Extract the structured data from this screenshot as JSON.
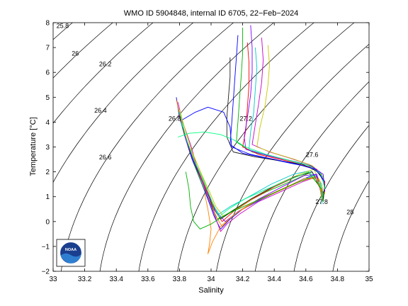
{
  "chart_data": {
    "type": "line",
    "title": "WMO ID 5904848, internal ID 6705, 22−Feb−2024",
    "xlabel": "Salinity",
    "ylabel": "Temperature [°C]",
    "xlim": [
      33,
      35
    ],
    "ylim": [
      -2,
      8
    ],
    "xticks": [
      33,
      33.2,
      33.4,
      33.6,
      33.8,
      34,
      34.2,
      34.4,
      34.6,
      34.8,
      35
    ],
    "yticks": [
      -2,
      -1,
      0,
      1,
      2,
      3,
      4,
      5,
      6,
      7,
      8
    ],
    "xtick_labels": [
      "33",
      "33.2",
      "33.4",
      "33.6",
      "33.8",
      "34",
      "34.2",
      "34.4",
      "34.6",
      "34.8",
      "35"
    ],
    "ytick_labels": [
      "−2",
      "−1",
      "0",
      "1",
      "2",
      "3",
      "4",
      "5",
      "6",
      "7",
      "8"
    ],
    "density_isolines": [
      25.6,
      25.8,
      26,
      26.2,
      26.4,
      26.6,
      26.8,
      27,
      27.2,
      27.4,
      27.6,
      27.8,
      28
    ],
    "isoline_labels": [
      {
        "text": "25.8",
        "s": 33.06,
        "t": 7.78
      },
      {
        "text": "26",
        "s": 33.14,
        "t": 6.68
      },
      {
        "text": "26.2",
        "s": 33.33,
        "t": 6.25
      },
      {
        "text": "26.4",
        "s": 33.3,
        "t": 4.38
      },
      {
        "text": "26.6",
        "s": 33.33,
        "t": 2.5
      },
      {
        "text": "26.8",
        "s": 33.77,
        "t": 4.05
      },
      {
        "text": "27.2",
        "s": 34.22,
        "t": 4.05
      },
      {
        "text": "27.6",
        "s": 34.64,
        "t": 2.6
      },
      {
        "text": "27.8",
        "s": 34.7,
        "t": 0.7
      },
      {
        "text": "28",
        "s": 34.88,
        "t": 0.3
      }
    ],
    "profile_colors": [
      "#0000ff",
      "#00b000",
      "#ff0000",
      "#00c8c8",
      "#c800c8",
      "#c8c800",
      "#202020",
      "#8000ff",
      "#ff8000",
      "#00ff80"
    ],
    "profiles": [
      [
        [
          33.78,
          5.0
        ],
        [
          33.8,
          4.2
        ],
        [
          33.84,
          3.3
        ],
        [
          33.88,
          2.5
        ],
        [
          33.93,
          1.7
        ],
        [
          33.98,
          0.9
        ],
        [
          34.02,
          0.2
        ],
        [
          34.06,
          -0.3
        ],
        [
          34.12,
          0.1
        ],
        [
          34.2,
          0.5
        ],
        [
          34.32,
          0.9
        ],
        [
          34.45,
          1.3
        ],
        [
          34.58,
          1.7
        ],
        [
          34.66,
          1.9
        ],
        [
          34.7,
          1.5
        ],
        [
          34.71,
          1.0
        ]
      ],
      [
        [
          33.79,
          4.6
        ],
        [
          33.82,
          3.8
        ],
        [
          33.86,
          3.0
        ],
        [
          33.9,
          2.2
        ],
        [
          33.95,
          1.4
        ],
        [
          34.0,
          0.7
        ],
        [
          34.04,
          0.1
        ],
        [
          34.1,
          0.3
        ],
        [
          34.2,
          0.7
        ],
        [
          34.35,
          1.2
        ],
        [
          34.5,
          1.6
        ],
        [
          34.62,
          1.95
        ],
        [
          34.69,
          1.4
        ],
        [
          34.7,
          0.9
        ]
      ],
      [
        [
          33.8,
          4.3
        ],
        [
          33.83,
          3.5
        ],
        [
          33.88,
          2.6
        ],
        [
          33.93,
          1.8
        ],
        [
          33.98,
          1.1
        ],
        [
          34.02,
          0.5
        ],
        [
          34.07,
          0.0
        ],
        [
          34.14,
          0.4
        ],
        [
          34.26,
          0.9
        ],
        [
          34.4,
          1.4
        ],
        [
          34.54,
          1.8
        ],
        [
          34.64,
          2.0
        ],
        [
          34.7,
          1.3
        ]
      ],
      [
        [
          33.81,
          4.0
        ],
        [
          33.85,
          3.1
        ],
        [
          33.9,
          2.3
        ],
        [
          33.96,
          1.5
        ],
        [
          34.0,
          0.8
        ],
        [
          34.05,
          0.3
        ],
        [
          34.12,
          0.6
        ],
        [
          34.24,
          1.0
        ],
        [
          34.38,
          1.5
        ],
        [
          34.52,
          1.9
        ],
        [
          34.63,
          2.05
        ],
        [
          34.69,
          1.6
        ],
        [
          34.71,
          0.8
        ]
      ],
      [
        [
          33.79,
          4.8
        ],
        [
          33.82,
          4.0
        ],
        [
          33.87,
          3.1
        ],
        [
          33.92,
          2.0
        ],
        [
          33.98,
          1.0
        ],
        [
          34.02,
          0.3
        ],
        [
          34.06,
          -0.4
        ],
        [
          34.1,
          -0.1
        ],
        [
          34.18,
          0.3
        ],
        [
          34.3,
          0.8
        ],
        [
          34.44,
          1.2
        ],
        [
          34.58,
          1.6
        ],
        [
          34.67,
          1.8
        ],
        [
          34.7,
          1.1
        ]
      ],
      [
        [
          33.8,
          4.5
        ],
        [
          33.84,
          3.6
        ],
        [
          33.88,
          2.8
        ],
        [
          33.94,
          1.9
        ],
        [
          33.99,
          1.2
        ],
        [
          34.03,
          0.6
        ],
        [
          34.08,
          0.2
        ],
        [
          34.16,
          0.5
        ],
        [
          34.28,
          1.0
        ],
        [
          34.42,
          1.5
        ],
        [
          34.56,
          1.9
        ],
        [
          34.65,
          2.1
        ],
        [
          34.7,
          1.5
        ],
        [
          34.71,
          0.9
        ]
      ],
      [
        [
          33.82,
          3.8
        ],
        [
          33.86,
          2.9
        ],
        [
          33.91,
          2.1
        ],
        [
          33.97,
          1.3
        ],
        [
          34.01,
          0.6
        ],
        [
          34.06,
          0.1
        ],
        [
          34.13,
          0.4
        ],
        [
          34.25,
          0.9
        ],
        [
          34.39,
          1.4
        ],
        [
          34.53,
          1.8
        ],
        [
          34.64,
          2.0
        ],
        [
          34.7,
          1.2
        ]
      ],
      [
        [
          33.83,
          3.5
        ],
        [
          33.88,
          2.6
        ],
        [
          33.94,
          1.7
        ],
        [
          33.99,
          1.0
        ],
        [
          34.03,
          0.4
        ],
        [
          34.09,
          0.0
        ],
        [
          34.17,
          0.4
        ],
        [
          34.3,
          0.9
        ],
        [
          34.45,
          1.4
        ],
        [
          34.59,
          1.85
        ],
        [
          34.67,
          1.9
        ],
        [
          34.7,
          1.0
        ]
      ],
      [
        [
          33.78,
          4.9
        ],
        [
          33.81,
          4.1
        ],
        [
          33.85,
          3.2
        ],
        [
          33.9,
          2.4
        ],
        [
          33.95,
          1.6
        ],
        [
          34.0,
          0.9
        ],
        [
          34.03,
          0.2
        ],
        [
          34.07,
          -0.2
        ],
        [
          34.13,
          0.2
        ],
        [
          34.22,
          0.6
        ],
        [
          34.34,
          1.0
        ],
        [
          34.48,
          1.4
        ],
        [
          34.6,
          1.75
        ],
        [
          34.68,
          1.7
        ],
        [
          34.7,
          1.0
        ]
      ],
      [
        [
          33.8,
          4.4
        ],
        [
          33.84,
          3.4
        ],
        [
          33.89,
          2.5
        ],
        [
          33.95,
          1.7
        ],
        [
          34.0,
          0.9
        ],
        [
          34.05,
          0.2
        ],
        [
          34.11,
          0.5
        ],
        [
          34.21,
          0.9
        ],
        [
          34.35,
          1.3
        ],
        [
          34.5,
          1.7
        ],
        [
          34.62,
          2.0
        ],
        [
          34.69,
          1.5
        ],
        [
          34.71,
          0.8
        ]
      ],
      [
        [
          34.17,
          7.5
        ],
        [
          34.16,
          6.6
        ],
        [
          34.15,
          5.7
        ],
        [
          34.14,
          4.8
        ],
        [
          34.13,
          3.9
        ],
        [
          34.12,
          3.1
        ],
        [
          34.2,
          2.75
        ],
        [
          34.35,
          2.55
        ],
        [
          34.5,
          2.35
        ],
        [
          34.62,
          2.2
        ],
        [
          34.7,
          1.9
        ],
        [
          34.72,
          1.4
        ],
        [
          34.71,
          0.9
        ]
      ],
      [
        [
          34.2,
          7.8
        ],
        [
          34.2,
          6.8
        ],
        [
          34.19,
          5.8
        ],
        [
          34.18,
          4.9
        ],
        [
          34.17,
          4.0
        ],
        [
          34.16,
          3.2
        ],
        [
          34.26,
          2.8
        ],
        [
          34.4,
          2.6
        ],
        [
          34.54,
          2.4
        ],
        [
          34.65,
          2.2
        ],
        [
          34.71,
          1.8
        ],
        [
          34.72,
          1.2
        ]
      ],
      [
        [
          34.23,
          7.2
        ],
        [
          34.24,
          6.4
        ],
        [
          34.24,
          5.5
        ],
        [
          34.23,
          4.6
        ],
        [
          34.22,
          3.7
        ],
        [
          34.2,
          3.0
        ],
        [
          34.3,
          2.7
        ],
        [
          34.44,
          2.5
        ],
        [
          34.57,
          2.3
        ],
        [
          34.67,
          2.1
        ],
        [
          34.72,
          1.6
        ],
        [
          34.71,
          0.8
        ]
      ],
      [
        [
          34.28,
          7.0
        ],
        [
          34.29,
          6.2
        ],
        [
          34.28,
          5.3
        ],
        [
          34.27,
          4.4
        ],
        [
          34.25,
          3.6
        ],
        [
          34.24,
          2.9
        ],
        [
          34.34,
          2.7
        ],
        [
          34.47,
          2.5
        ],
        [
          34.6,
          2.3
        ],
        [
          34.69,
          2.0
        ],
        [
          34.72,
          1.4
        ],
        [
          34.7,
          0.7
        ]
      ],
      [
        [
          34.32,
          7.4
        ],
        [
          34.33,
          6.5
        ],
        [
          34.32,
          5.6
        ],
        [
          34.3,
          4.7
        ],
        [
          34.28,
          3.9
        ],
        [
          34.26,
          3.1
        ],
        [
          34.37,
          2.8
        ],
        [
          34.5,
          2.55
        ],
        [
          34.62,
          2.3
        ],
        [
          34.7,
          1.9
        ],
        [
          34.72,
          1.3
        ]
      ],
      [
        [
          34.36,
          7.1
        ],
        [
          34.37,
          6.3
        ],
        [
          34.36,
          5.5
        ],
        [
          34.34,
          4.6
        ],
        [
          34.31,
          3.8
        ],
        [
          34.29,
          3.0
        ],
        [
          34.4,
          2.75
        ],
        [
          34.53,
          2.5
        ],
        [
          34.64,
          2.25
        ],
        [
          34.71,
          1.8
        ],
        [
          34.72,
          1.1
        ]
      ],
      [
        [
          34.12,
          6.6
        ],
        [
          34.12,
          5.8
        ],
        [
          34.11,
          5.0
        ],
        [
          34.1,
          4.2
        ],
        [
          34.1,
          3.4
        ],
        [
          34.14,
          2.8
        ],
        [
          34.28,
          2.6
        ],
        [
          34.43,
          2.45
        ],
        [
          34.58,
          2.3
        ],
        [
          34.68,
          2.0
        ],
        [
          34.72,
          1.5
        ],
        [
          34.71,
          0.9
        ]
      ],
      [
        [
          34.25,
          7.9
        ],
        [
          34.26,
          7.0
        ],
        [
          34.26,
          6.0
        ],
        [
          34.25,
          5.1
        ],
        [
          34.23,
          4.2
        ],
        [
          34.21,
          3.4
        ],
        [
          34.22,
          2.9
        ],
        [
          34.36,
          2.65
        ],
        [
          34.5,
          2.45
        ],
        [
          34.63,
          2.25
        ],
        [
          34.71,
          1.9
        ],
        [
          34.72,
          1.2
        ]
      ],
      [
        [
          33.96,
          1.1
        ],
        [
          33.98,
          0.5
        ],
        [
          34.0,
          -0.3
        ],
        [
          33.99,
          -0.9
        ],
        [
          33.98,
          -1.3
        ],
        [
          34.01,
          -0.8
        ],
        [
          34.06,
          -0.2
        ],
        [
          34.15,
          0.3
        ],
        [
          34.28,
          0.8
        ],
        [
          34.42,
          1.2
        ],
        [
          34.56,
          1.6
        ],
        [
          34.66,
          1.8
        ],
        [
          34.7,
          1.2
        ]
      ],
      [
        [
          33.79,
          3.4
        ],
        [
          33.86,
          3.55
        ],
        [
          33.96,
          3.6
        ],
        [
          34.06,
          3.5
        ],
        [
          34.14,
          3.3
        ],
        [
          34.22,
          3.0
        ],
        [
          34.35,
          2.7
        ],
        [
          34.5,
          2.45
        ],
        [
          34.62,
          2.25
        ],
        [
          34.7,
          1.9
        ],
        [
          34.72,
          1.3
        ]
      ],
      [
        [
          33.82,
          4.1
        ],
        [
          33.9,
          4.4
        ],
        [
          33.98,
          4.6
        ],
        [
          34.08,
          4.4
        ],
        [
          34.12,
          3.8
        ],
        [
          34.13,
          3.0
        ],
        [
          34.25,
          2.7
        ],
        [
          34.4,
          2.5
        ],
        [
          34.55,
          2.3
        ],
        [
          34.66,
          2.1
        ],
        [
          34.72,
          1.6
        ]
      ],
      [
        [
          33.84,
          2.0
        ],
        [
          33.86,
          1.3
        ],
        [
          33.87,
          0.6
        ],
        [
          33.89,
          0.0
        ],
        [
          33.93,
          -0.3
        ],
        [
          34.0,
          -0.1
        ],
        [
          34.1,
          0.3
        ],
        [
          34.24,
          0.7
        ],
        [
          34.38,
          1.1
        ],
        [
          34.52,
          1.5
        ],
        [
          34.64,
          1.8
        ],
        [
          34.7,
          1.3
        ],
        [
          34.71,
          0.8
        ]
      ]
    ]
  },
  "logo": {
    "text": "NOAA"
  }
}
